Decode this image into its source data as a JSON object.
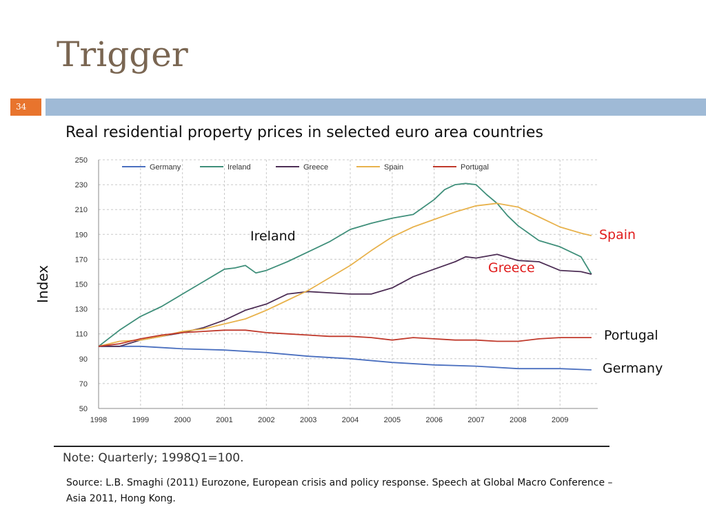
{
  "slide": {
    "title": "Trigger",
    "page_number": "34"
  },
  "chart_heading": "Real residential property prices in selected euro area countries",
  "y_axis_label": "Index",
  "callouts": {
    "ireland": "Ireland",
    "spain": "Spain",
    "greece": "Greece",
    "portugal": "Portugal",
    "germany": "Germany"
  },
  "note": "Note: Quarterly; 1998Q1=100.",
  "source": "Source: L.B. Smaghi (2011) Eurozone, European crisis and policy response. Speech at Global Macro Conference – Asia 2011, Hong Kong.",
  "colors": {
    "Germany": "#4a6fbf",
    "Ireland": "#3f8f7a",
    "Greece": "#4d2e55",
    "Spain": "#e8b24c",
    "Portugal": "#c0392b",
    "spain_label": "#e01c1c",
    "greece_label": "#e01c1c",
    "title": "#7a6652",
    "page_box": "#e8742d",
    "header_rule": "#9fbad6"
  },
  "chart_data": {
    "type": "line",
    "ylim": [
      50,
      250
    ],
    "yticks": [
      50,
      70,
      90,
      110,
      130,
      150,
      170,
      190,
      210,
      230,
      250
    ],
    "xlim": [
      1998,
      2009.9
    ],
    "xticks": [
      1998,
      1999,
      2000,
      2001,
      2002,
      2003,
      2004,
      2005,
      2006,
      2007,
      2008,
      2009
    ],
    "grid": true,
    "legend_position": "top",
    "series": [
      {
        "name": "Germany",
        "x": [
          1998,
          1999,
          2000,
          2001,
          2002,
          2003,
          2004,
          2005,
          2006,
          2007,
          2008,
          2009,
          2009.75
        ],
        "values": [
          100,
          100,
          98,
          97,
          95,
          92,
          90,
          87,
          85,
          84,
          82,
          82,
          81
        ]
      },
      {
        "name": "Ireland",
        "x": [
          1998,
          1998.5,
          1999,
          1999.5,
          2000,
          2000.5,
          2001,
          2001.25,
          2001.5,
          2001.75,
          2002,
          2002.5,
          2003,
          2003.5,
          2004,
          2004.5,
          2005,
          2005.5,
          2006,
          2006.25,
          2006.5,
          2006.75,
          2007,
          2007.25,
          2007.5,
          2007.75,
          2008,
          2008.5,
          2009,
          2009.5,
          2009.75
        ],
        "values": [
          100,
          113,
          124,
          132,
          142,
          152,
          162,
          163,
          165,
          159,
          161,
          168,
          176,
          184,
          194,
          199,
          203,
          206,
          218,
          226,
          230,
          231,
          230,
          222,
          215,
          205,
          197,
          185,
          180,
          172,
          158
        ]
      },
      {
        "name": "Greece",
        "x": [
          1998,
          1998.5,
          1999,
          1999.5,
          2000,
          2000.5,
          2001,
          2001.5,
          2002,
          2002.5,
          2003,
          2003.5,
          2004,
          2004.5,
          2005,
          2005.5,
          2006,
          2006.5,
          2006.75,
          2007,
          2007.5,
          2008,
          2008.5,
          2009,
          2009.5,
          2009.75
        ],
        "values": [
          100,
          100,
          105,
          108,
          111,
          115,
          121,
          129,
          134,
          142,
          144,
          143,
          142,
          142,
          147,
          156,
          162,
          168,
          172,
          171,
          174,
          169,
          168,
          161,
          160,
          158
        ]
      },
      {
        "name": "Spain",
        "x": [
          1998,
          1998.5,
          1999,
          1999.5,
          2000,
          2000.5,
          2001,
          2001.5,
          2002,
          2002.5,
          2003,
          2003.5,
          2004,
          2004.5,
          2005,
          2005.5,
          2006,
          2006.5,
          2007,
          2007.5,
          2008,
          2008.5,
          2009,
          2009.5,
          2009.75
        ],
        "values": [
          100,
          104,
          105,
          108,
          112,
          114,
          118,
          122,
          129,
          137,
          145,
          155,
          165,
          177,
          188,
          196,
          202,
          208,
          213,
          215,
          212,
          204,
          196,
          191,
          189
        ]
      },
      {
        "name": "Portugal",
        "x": [
          1998,
          1998.5,
          1999,
          1999.5,
          2000,
          2000.5,
          2001,
          2001.5,
          2002,
          2002.5,
          2003,
          2003.5,
          2004,
          2004.5,
          2005,
          2005.5,
          2006,
          2006.5,
          2007,
          2007.5,
          2008,
          2008.5,
          2009,
          2009.5,
          2009.75
        ],
        "values": [
          100,
          102,
          106,
          109,
          111,
          112,
          113,
          113,
          111,
          110,
          109,
          108,
          108,
          107,
          105,
          107,
          106,
          105,
          105,
          104,
          104,
          106,
          107,
          107,
          107
        ]
      }
    ]
  }
}
